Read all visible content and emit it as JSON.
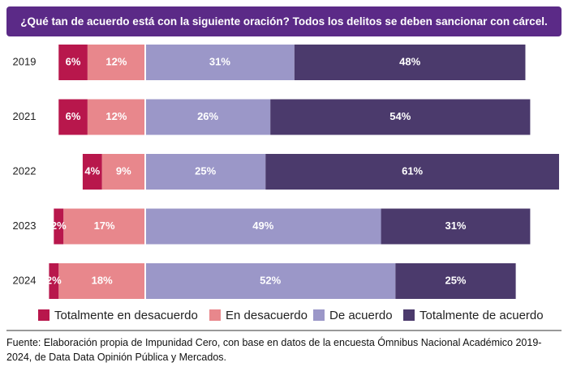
{
  "chart_data": {
    "type": "diverging_bar",
    "title": "¿Qué tan de acuerdo está con la siguiente oración? Todos los delitos se deben sancionar con cárcel.",
    "categories": [
      "2019",
      "2021",
      "2022",
      "2023",
      "2024"
    ],
    "series": [
      {
        "name": "Totalmente en desacuerdo",
        "color": "#b8174c",
        "values": [
          6,
          6,
          4,
          2,
          2
        ],
        "value_labels": [
          "6%",
          "6%",
          "4%",
          "2%",
          "2%"
        ]
      },
      {
        "name": "En desacuerdo",
        "color": "#e8878c",
        "values": [
          12,
          12,
          9,
          17,
          18
        ],
        "value_labels": [
          "12%",
          "12%",
          "9%",
          "17%",
          "18%"
        ]
      },
      {
        "name": "De acuerdo",
        "color": "#9b97c8",
        "values": [
          31,
          26,
          25,
          49,
          52
        ],
        "value_labels": [
          "31%",
          "26%",
          "25%",
          "49%",
          "52%"
        ]
      },
      {
        "name": "Totalmente de acuerdo",
        "color": "#4b3a6c",
        "values": [
          48,
          54,
          61,
          31,
          25
        ],
        "value_labels": [
          "48%",
          "54%",
          "61%",
          "31%",
          "25%"
        ]
      }
    ],
    "source": "Fuente: Elaboración propia de Impunidad Cero, con base en datos de la encuesta Ómnibus Nacional Académico 2019-2024, de Data Data Opinión Pública y Mercados."
  }
}
